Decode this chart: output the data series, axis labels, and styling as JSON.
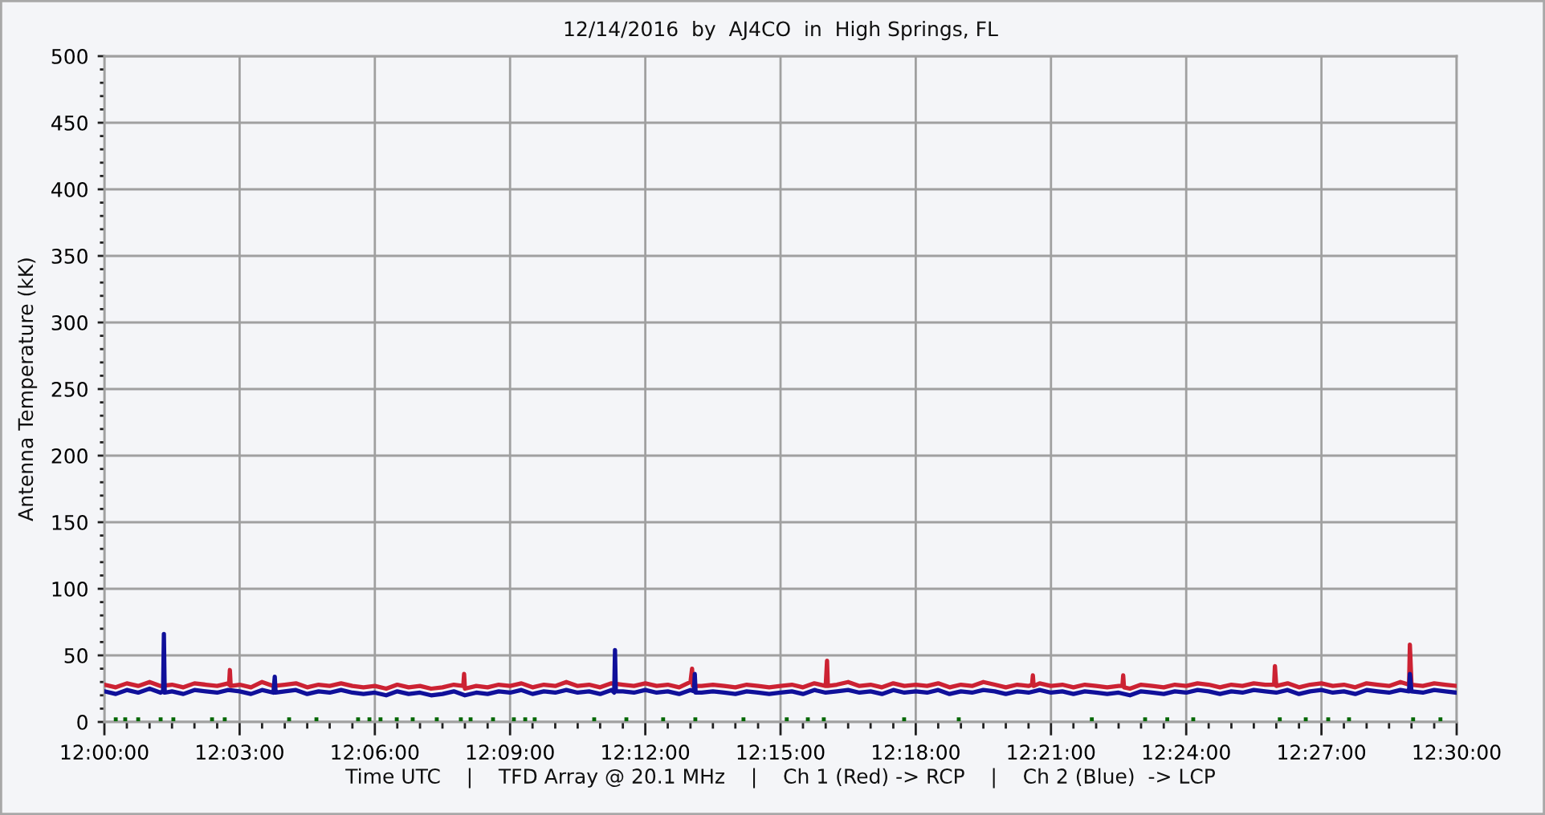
{
  "chart_data": {
    "type": "line",
    "title": "12/14/2016  by  AJ4CO  in  High Springs, FL",
    "xlabel": "Time UTC    |    TFD Array @ 20.1 MHz    |    Ch 1 (Red) -> RCP    |    Ch 2 (Blue)  -> LCP",
    "ylabel": "Antenna Temperature (kK)",
    "xlim": [
      12.0,
      12.5
    ],
    "ylim": [
      0,
      500
    ],
    "grid": true,
    "xticks": [
      {
        "value": 12.0,
        "label": "12:00:00"
      },
      {
        "value": 12.0083,
        "label": null
      },
      {
        "value": 12.0167,
        "label": null
      },
      {
        "value": 12.025,
        "label": null
      },
      {
        "value": 12.0333,
        "label": null
      },
      {
        "value": 12.0417,
        "label": null
      },
      {
        "value": 12.05,
        "label": "12:03:00"
      },
      {
        "value": 12.0583,
        "label": null
      },
      {
        "value": 12.0667,
        "label": null
      },
      {
        "value": 12.075,
        "label": null
      },
      {
        "value": 12.0833,
        "label": null
      },
      {
        "value": 12.0917,
        "label": null
      },
      {
        "value": 12.1,
        "label": "12:06:00"
      },
      {
        "value": 12.1083,
        "label": null
      },
      {
        "value": 12.1167,
        "label": null
      },
      {
        "value": 12.125,
        "label": null
      },
      {
        "value": 12.1333,
        "label": null
      },
      {
        "value": 12.1417,
        "label": null
      },
      {
        "value": 12.15,
        "label": "12:09:00"
      },
      {
        "value": 12.1583,
        "label": null
      },
      {
        "value": 12.1667,
        "label": null
      },
      {
        "value": 12.175,
        "label": null
      },
      {
        "value": 12.1833,
        "label": null
      },
      {
        "value": 12.1917,
        "label": null
      },
      {
        "value": 12.2,
        "label": "12:12:00"
      },
      {
        "value": 12.2083,
        "label": null
      },
      {
        "value": 12.2167,
        "label": null
      },
      {
        "value": 12.225,
        "label": null
      },
      {
        "value": 12.2333,
        "label": null
      },
      {
        "value": 12.2417,
        "label": null
      },
      {
        "value": 12.25,
        "label": "12:15:00"
      },
      {
        "value": 12.2583,
        "label": null
      },
      {
        "value": 12.2667,
        "label": null
      },
      {
        "value": 12.275,
        "label": null
      },
      {
        "value": 12.2833,
        "label": null
      },
      {
        "value": 12.2917,
        "label": null
      },
      {
        "value": 12.3,
        "label": "12:18:00"
      },
      {
        "value": 12.3083,
        "label": null
      },
      {
        "value": 12.3167,
        "label": null
      },
      {
        "value": 12.325,
        "label": null
      },
      {
        "value": 12.3333,
        "label": null
      },
      {
        "value": 12.3417,
        "label": null
      },
      {
        "value": 12.35,
        "label": "12:21:00"
      },
      {
        "value": 12.3583,
        "label": null
      },
      {
        "value": 12.3667,
        "label": null
      },
      {
        "value": 12.375,
        "label": null
      },
      {
        "value": 12.3833,
        "label": null
      },
      {
        "value": 12.3917,
        "label": null
      },
      {
        "value": 12.4,
        "label": "12:24:00"
      },
      {
        "value": 12.4083,
        "label": null
      },
      {
        "value": 12.4167,
        "label": null
      },
      {
        "value": 12.425,
        "label": null
      },
      {
        "value": 12.4333,
        "label": null
      },
      {
        "value": 12.4417,
        "label": null
      },
      {
        "value": 12.45,
        "label": "12:27:00"
      },
      {
        "value": 12.4583,
        "label": null
      },
      {
        "value": 12.4667,
        "label": null
      },
      {
        "value": 12.475,
        "label": null
      },
      {
        "value": 12.4833,
        "label": null
      },
      {
        "value": 12.4917,
        "label": null
      },
      {
        "value": 12.5,
        "label": "12:30:00"
      }
    ],
    "yticks": [
      0,
      {
        "value": 10,
        "label": null
      },
      {
        "value": 20,
        "label": null
      },
      {
        "value": 30,
        "label": null
      },
      {
        "value": 40,
        "label": null
      },
      50,
      {
        "value": 60,
        "label": null
      },
      {
        "value": 70,
        "label": null
      },
      {
        "value": 80,
        "label": null
      },
      {
        "value": 90,
        "label": null
      },
      100,
      {
        "value": 110,
        "label": null
      },
      {
        "value": 120,
        "label": null
      },
      {
        "value": 130,
        "label": null
      },
      {
        "value": 140,
        "label": null
      },
      150,
      {
        "value": 160,
        "label": null
      },
      {
        "value": 170,
        "label": null
      },
      {
        "value": 180,
        "label": null
      },
      {
        "value": 190,
        "label": null
      },
      200,
      {
        "value": 210,
        "label": null
      },
      {
        "value": 220,
        "label": null
      },
      {
        "value": 230,
        "label": null
      },
      {
        "value": 240,
        "label": null
      },
      250,
      {
        "value": 260,
        "label": null
      },
      {
        "value": 270,
        "label": null
      },
      {
        "value": 280,
        "label": null
      },
      {
        "value": 290,
        "label": null
      },
      300,
      {
        "value": 310,
        "label": null
      },
      {
        "value": 320,
        "label": null
      },
      {
        "value": 330,
        "label": null
      },
      {
        "value": 340,
        "label": null
      },
      350,
      {
        "value": 360,
        "label": null
      },
      {
        "value": 370,
        "label": null
      },
      {
        "value": 380,
        "label": null
      },
      {
        "value": 390,
        "label": null
      },
      400,
      {
        "value": 410,
        "label": null
      },
      {
        "value": 420,
        "label": null
      },
      {
        "value": 430,
        "label": null
      },
      {
        "value": 440,
        "label": null
      },
      450,
      {
        "value": 460,
        "label": null
      },
      {
        "value": 470,
        "label": null
      },
      {
        "value": 480,
        "label": null
      },
      {
        "value": 490,
        "label": null
      },
      500
    ],
    "series": [
      {
        "color": "#cc2233",
        "x": [
          12.0,
          12.0042,
          12.0083,
          12.0125,
          12.0167,
          12.0208,
          12.025,
          12.0292,
          12.0333,
          12.0375,
          12.0417,
          12.0458,
          12.0461,
          12.0464,
          12.0467,
          12.05,
          12.0542,
          12.0583,
          12.0625,
          12.0667,
          12.0708,
          12.075,
          12.0792,
          12.0833,
          12.0875,
          12.0917,
          12.0958,
          12.1,
          12.1042,
          12.1083,
          12.1125,
          12.1167,
          12.1208,
          12.125,
          12.1292,
          12.1327,
          12.133,
          12.1333,
          12.1375,
          12.1417,
          12.1458,
          12.15,
          12.1542,
          12.1583,
          12.1625,
          12.1667,
          12.1708,
          12.175,
          12.1792,
          12.1833,
          12.1875,
          12.1917,
          12.1958,
          12.2,
          12.2042,
          12.2083,
          12.2125,
          12.2167,
          12.2173,
          12.2176,
          12.2208,
          12.225,
          12.2292,
          12.2333,
          12.2375,
          12.2417,
          12.2458,
          12.25,
          12.2542,
          12.2583,
          12.2625,
          12.2667,
          12.2672,
          12.2675,
          12.2708,
          12.275,
          12.2792,
          12.2833,
          12.2875,
          12.2917,
          12.2958,
          12.3,
          12.3042,
          12.3083,
          12.3125,
          12.3167,
          12.3208,
          12.325,
          12.3292,
          12.3333,
          12.3375,
          12.3417,
          12.343,
          12.3433,
          12.3436,
          12.3458,
          12.35,
          12.3542,
          12.3583,
          12.3625,
          12.3667,
          12.3708,
          12.375,
          12.3764,
          12.3767,
          12.377,
          12.3792,
          12.3833,
          12.3875,
          12.3917,
          12.3958,
          12.4,
          12.4042,
          12.4083,
          12.4125,
          12.4167,
          12.4208,
          12.425,
          12.4292,
          12.4325,
          12.4328,
          12.4333,
          12.4375,
          12.4417,
          12.4458,
          12.45,
          12.4542,
          12.4583,
          12.4625,
          12.4667,
          12.4708,
          12.475,
          12.4792,
          12.4824,
          12.4827,
          12.4833,
          12.4875,
          12.4917,
          12.4958,
          12.5
        ],
        "values": [
          28,
          26,
          29,
          27,
          30,
          27,
          28,
          26,
          29,
          28,
          27,
          29,
          28,
          39,
          27,
          28,
          26,
          30,
          27,
          28,
          29,
          26,
          28,
          27,
          29,
          27,
          26,
          27,
          25,
          28,
          26,
          27,
          25,
          26,
          28,
          27,
          36,
          25,
          27,
          26,
          28,
          27,
          29,
          26,
          28,
          27,
          30,
          27,
          28,
          26,
          29,
          28,
          27,
          29,
          27,
          28,
          26,
          30,
          40,
          27,
          27,
          28,
          27,
          26,
          28,
          27,
          26,
          27,
          28,
          26,
          29,
          27,
          46,
          27,
          28,
          30,
          27,
          28,
          26,
          29,
          27,
          28,
          27,
          29,
          26,
          28,
          27,
          30,
          28,
          26,
          28,
          27,
          28,
          35,
          27,
          29,
          27,
          28,
          26,
          28,
          27,
          26,
          27,
          27,
          35,
          26,
          25,
          28,
          27,
          26,
          28,
          27,
          29,
          28,
          26,
          28,
          27,
          29,
          28,
          28,
          42,
          27,
          29,
          26,
          28,
          29,
          27,
          28,
          26,
          29,
          28,
          27,
          30,
          28,
          58,
          28,
          27,
          29,
          28,
          27
        ]
      },
      {
        "color": "#10109a",
        "x": [
          12.0,
          12.0042,
          12.0083,
          12.0125,
          12.0167,
          12.0208,
          12.0217,
          12.022,
          12.0223,
          12.025,
          12.0292,
          12.0333,
          12.0375,
          12.0417,
          12.0458,
          12.05,
          12.0542,
          12.0583,
          12.0625,
          12.063,
          12.0633,
          12.0667,
          12.0708,
          12.075,
          12.0792,
          12.0833,
          12.0875,
          12.0917,
          12.0958,
          12.1,
          12.1042,
          12.1083,
          12.1125,
          12.1167,
          12.1208,
          12.125,
          12.1292,
          12.1333,
          12.1375,
          12.1417,
          12.1458,
          12.15,
          12.1542,
          12.1583,
          12.1625,
          12.1667,
          12.1708,
          12.175,
          12.1792,
          12.1833,
          12.1875,
          12.1885,
          12.1888,
          12.1891,
          12.1917,
          12.1958,
          12.2,
          12.2042,
          12.2083,
          12.2125,
          12.2167,
          12.218,
          12.2183,
          12.2186,
          12.2208,
          12.225,
          12.2292,
          12.2333,
          12.2375,
          12.2417,
          12.2458,
          12.25,
          12.2542,
          12.2583,
          12.2625,
          12.2667,
          12.2708,
          12.275,
          12.2792,
          12.2833,
          12.2875,
          12.2917,
          12.2958,
          12.3,
          12.3042,
          12.3083,
          12.3125,
          12.3167,
          12.3208,
          12.325,
          12.3292,
          12.3333,
          12.3375,
          12.3417,
          12.3458,
          12.35,
          12.3542,
          12.3583,
          12.3625,
          12.3667,
          12.3708,
          12.375,
          12.3792,
          12.3833,
          12.3875,
          12.3917,
          12.3958,
          12.4,
          12.4042,
          12.4083,
          12.4125,
          12.4167,
          12.4208,
          12.425,
          12.4292,
          12.4333,
          12.4375,
          12.4417,
          12.4458,
          12.45,
          12.4542,
          12.4583,
          12.4625,
          12.4667,
          12.4708,
          12.475,
          12.4792,
          12.4824,
          12.4827,
          12.4833,
          12.4875,
          12.4917,
          12.4958,
          12.5
        ],
        "values": [
          23,
          21,
          24,
          22,
          25,
          22,
          23,
          66,
          22,
          23,
          21,
          24,
          23,
          22,
          24,
          23,
          21,
          24,
          22,
          34,
          22,
          23,
          24,
          21,
          23,
          22,
          24,
          22,
          21,
          22,
          20,
          23,
          21,
          22,
          20,
          21,
          23,
          20,
          22,
          21,
          23,
          22,
          24,
          21,
          23,
          22,
          24,
          22,
          23,
          21,
          24,
          22,
          54,
          23,
          23,
          22,
          24,
          22,
          23,
          21,
          24,
          23,
          36,
          22,
          22,
          23,
          22,
          21,
          23,
          22,
          21,
          22,
          23,
          21,
          24,
          22,
          23,
          24,
          22,
          23,
          21,
          24,
          22,
          23,
          22,
          24,
          21,
          23,
          22,
          24,
          23,
          21,
          23,
          22,
          24,
          22,
          23,
          21,
          23,
          22,
          21,
          22,
          20,
          23,
          22,
          21,
          23,
          22,
          24,
          23,
          21,
          23,
          22,
          24,
          23,
          22,
          24,
          21,
          23,
          24,
          22,
          23,
          21,
          24,
          23,
          22,
          24,
          23,
          36,
          23,
          22,
          24,
          23,
          22
        ]
      },
      {
        "type": "scatter",
        "marker": "square",
        "color": "#006600",
        "x": [
          12.0042,
          12.0077,
          12.0125,
          12.0208,
          12.0255,
          12.0398,
          12.0445,
          12.0683,
          12.0784,
          12.0938,
          12.098,
          12.1021,
          12.1081,
          12.114,
          12.1229,
          12.1318,
          12.1354,
          12.1437,
          12.1514,
          12.1556,
          12.1591,
          12.1811,
          12.193,
          12.2066,
          12.2185,
          12.2363,
          12.2523,
          12.2601,
          12.266,
          12.2957,
          12.3159,
          12.3651,
          12.3848,
          12.393,
          12.4026,
          12.4346,
          12.4442,
          12.4525,
          12.4602,
          12.4839,
          12.494
        ],
        "values": [
          2,
          2,
          2,
          2,
          2,
          2,
          2,
          2,
          2,
          2,
          2,
          2,
          2,
          2,
          2,
          2,
          2,
          2,
          2,
          2,
          2,
          2,
          2,
          2,
          2,
          2,
          2,
          2,
          2,
          2,
          2,
          2,
          2,
          2,
          2,
          2,
          2,
          2,
          2,
          2,
          2
        ]
      }
    ]
  }
}
